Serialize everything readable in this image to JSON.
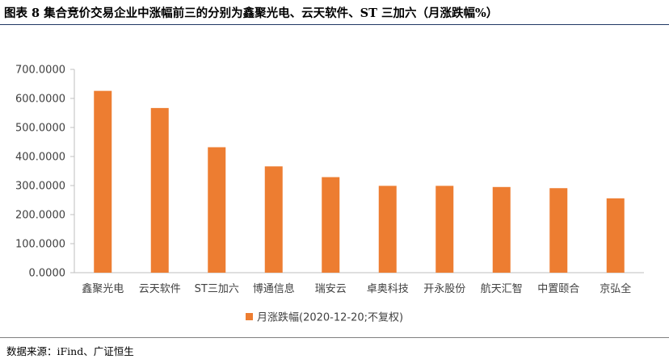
{
  "title": "图表 8  集合竞价交易企业中涨幅前三的分别为鑫聚光电、云天软件、ST 三加六（月涨跌幅%）",
  "source": "数据来源：iFind、广证恒生",
  "colors": {
    "bar": "#ED7D31",
    "axis": "#bfbfbf",
    "text": "#404040"
  },
  "chart_data": {
    "type": "bar",
    "categories": [
      "鑫聚光电",
      "云天软件",
      "ST三加六",
      "博通信息",
      "瑞安云",
      "卓奥科技",
      "开永股份",
      "航天汇智",
      "中置颐合",
      "京弘全"
    ],
    "series": [
      {
        "name": "月涨跌幅(2020-12-20;不复权)",
        "values": [
          626,
          567,
          432,
          366,
          329,
          299,
          299,
          295,
          291,
          256
        ]
      }
    ],
    "ylim": [
      0,
      700
    ],
    "yticks": [
      "0.0000",
      "100.0000",
      "200.0000",
      "300.0000",
      "400.0000",
      "500.0000",
      "600.0000",
      "700.0000"
    ],
    "grid": false,
    "legend_position": "bottom"
  }
}
